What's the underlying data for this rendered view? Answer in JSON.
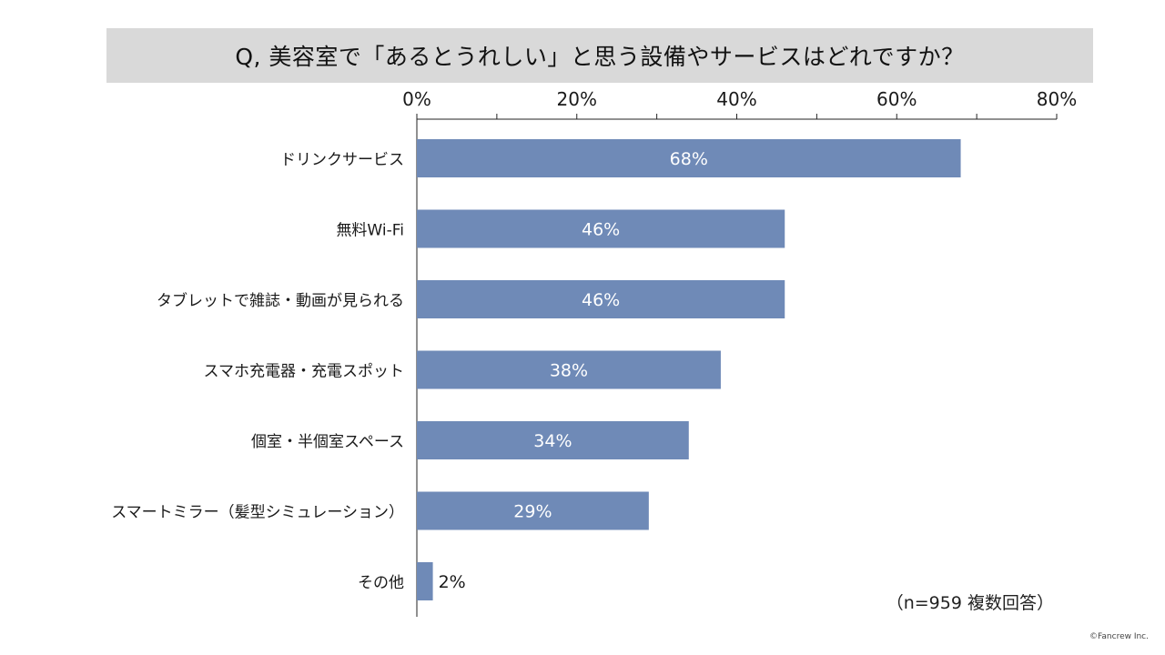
{
  "chart_data": {
    "type": "bar",
    "orientation": "horizontal",
    "title": "Q, 美容室で「あるとうれしい」と思う設備やサービスはどれですか？",
    "categories": [
      "ドリンクサービス",
      "無料Wi-Fi",
      "タブレットで雑誌・動画が見られる",
      "スマホ充電器・充電スポット",
      "個室・半個室スペース",
      "スマートミラー（髪型シミュレーション）",
      "その他"
    ],
    "values": [
      68,
      46,
      46,
      38,
      34,
      29,
      2
    ],
    "data_labels": [
      "68%",
      "46%",
      "46%",
      "38%",
      "34%",
      "29%",
      "2%"
    ],
    "x_ticks": [
      "0%",
      "20%",
      "40%",
      "60%",
      "80%"
    ],
    "xlim": [
      0,
      80
    ],
    "x_axis_position": "top",
    "grid": false,
    "bar_color": "#6f8ab7",
    "label_inside_color": "#ffffff"
  },
  "footnote": "（n=959 複数回答）",
  "copyright": "©Fancrew Inc."
}
